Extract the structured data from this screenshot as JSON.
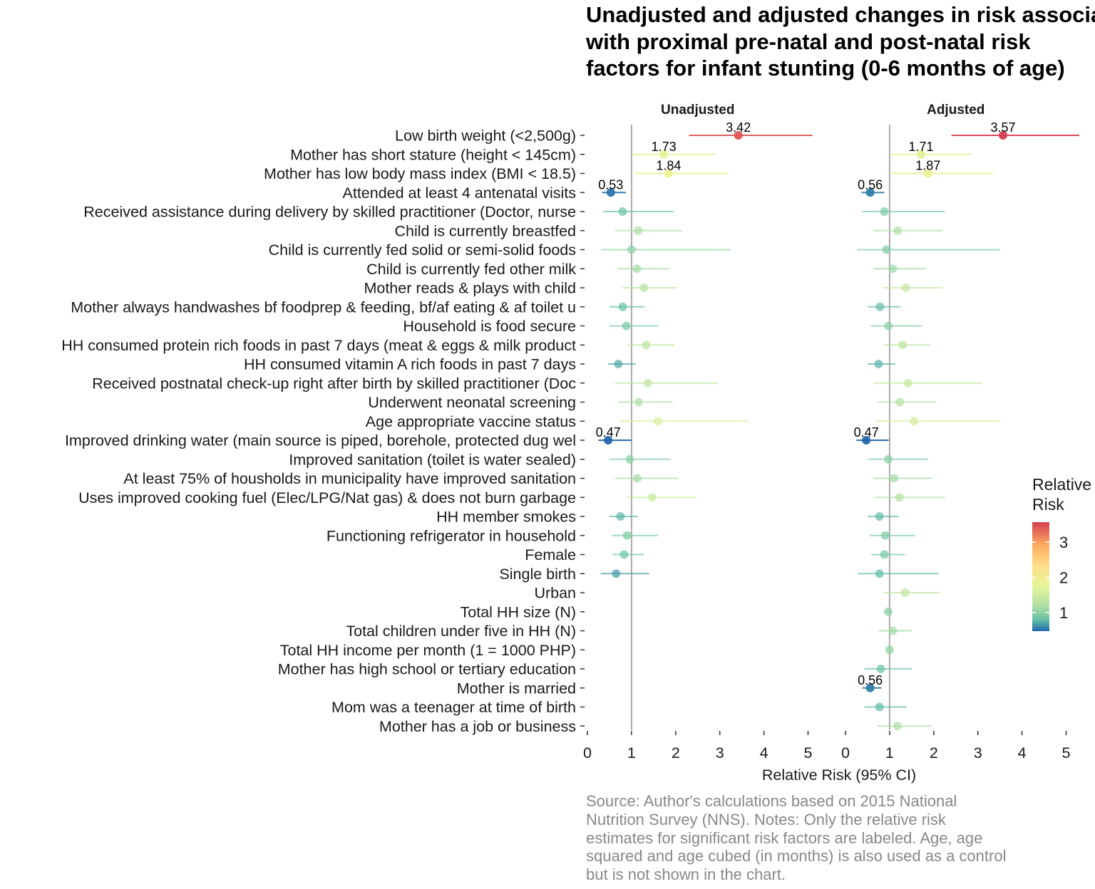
{
  "title_lines": [
    "Unadjusted and adjusted changes in risk associated",
    "with proximal pre-natal and post-natal risk",
    "factors for infant stunting (0-6 months of age)"
  ],
  "caption_lines": [
    "Source: Author's calculations based on 2015 National",
    "Nutrition Survey (NNS). Notes: Only the relative risk",
    "estimates for significant risk factors are labeled. Age, age",
    "squared and age cubed (in months) is also used as a control",
    "but is not shown in the chart."
  ],
  "colors": {
    "low": "#2166ac",
    "mid_low": "#66c2a5",
    "mid": "#abdda4",
    "mid_high": "#e6f598",
    "high_1": "#fee08b",
    "high_2": "#fdae61",
    "top": "#d53e4f",
    "reference_line": "#aaaaaa"
  },
  "chart_data": {
    "type": "forest",
    "xlabel": "Relative Risk (95% CI)",
    "xlim": [
      0,
      5
    ],
    "xticks": [
      "0",
      "1",
      "2",
      "3",
      "4",
      "5"
    ],
    "reference_value": 1,
    "legend": {
      "title_lines": [
        "Relative",
        "Risk"
      ],
      "ticks": [
        "1",
        "2",
        "3"
      ],
      "tick_values": [
        1,
        2,
        3
      ],
      "range": [
        0.47,
        3.57
      ],
      "position": "right"
    },
    "panels": [
      "Unadjusted",
      "Adjusted"
    ],
    "categories": [
      "Low birth weight (<2,500g)",
      "Mother has short stature (height < 145cm)",
      "Mother has low body mass index (BMI < 18.5)",
      "Attended at least 4 antenatal visits",
      "Received assistance during delivery by skilled practitioner (Doctor, nurse",
      "Child is currently breastfed",
      "Child is currently fed solid or semi-solid foods",
      "Child is currently fed other milk",
      "Mother reads & plays with child",
      "Mother always handwashes bf foodprep & feeding, bf/af eating & af toilet u",
      "Household is food secure",
      "HH consumed protein rich foods in past 7 days (meat & eggs & milk product",
      "HH consumed vitamin A rich foods in past 7 days",
      "Received postnatal check-up right after birth by skilled practitioner (Doc",
      "Underwent neonatal screening",
      "Age appropriate vaccine status",
      "Improved drinking water (main source is piped, borehole, protected dug wel",
      "Improved sanitation (toilet is water sealed)",
      "At least 75% of housholds in municipality have improved sanitation",
      "Uses improved cooking fuel (Elec/LPG/Nat gas) & does not burn garbage",
      "HH member smokes",
      "Functioning refrigerator in household",
      "Female",
      "Single birth",
      "Urban",
      "Total HH size (N)",
      "Total children under five in HH (N)",
      "Total HH income per month (1 = 1000 PHP)",
      "Mother has high school or tertiary education",
      "Mother is married",
      "Mom was a teenager at time of birth",
      "Mother has a job or business"
    ],
    "series": [
      {
        "name": "Unadjusted",
        "points": [
          {
            "rr": 3.42,
            "lo": 2.3,
            "hi": 5.1,
            "label": "3.42"
          },
          {
            "rr": 1.73,
            "lo": 1.03,
            "hi": 2.9,
            "label": "1.73"
          },
          {
            "rr": 1.84,
            "lo": 1.07,
            "hi": 3.2,
            "label": "1.84"
          },
          {
            "rr": 0.53,
            "lo": 0.33,
            "hi": 0.87,
            "label": "0.53"
          },
          {
            "rr": 0.8,
            "lo": 0.36,
            "hi": 1.95,
            "label": ""
          },
          {
            "rr": 1.15,
            "lo": 0.63,
            "hi": 2.15,
            "label": ""
          },
          {
            "rr": 1.0,
            "lo": 0.32,
            "hi": 3.25,
            "label": ""
          },
          {
            "rr": 1.12,
            "lo": 0.68,
            "hi": 1.85,
            "label": ""
          },
          {
            "rr": 1.28,
            "lo": 0.8,
            "hi": 2.02,
            "label": ""
          },
          {
            "rr": 0.8,
            "lo": 0.5,
            "hi": 1.3,
            "label": ""
          },
          {
            "rr": 0.88,
            "lo": 0.5,
            "hi": 1.6,
            "label": ""
          },
          {
            "rr": 1.33,
            "lo": 0.9,
            "hi": 1.98,
            "label": ""
          },
          {
            "rr": 0.7,
            "lo": 0.47,
            "hi": 1.1,
            "label": ""
          },
          {
            "rr": 1.37,
            "lo": 0.63,
            "hi": 2.95,
            "label": ""
          },
          {
            "rr": 1.16,
            "lo": 0.7,
            "hi": 1.93,
            "label": ""
          },
          {
            "rr": 1.6,
            "lo": 0.72,
            "hi": 3.65,
            "label": ""
          },
          {
            "rr": 0.47,
            "lo": 0.25,
            "hi": 1.0,
            "label": "0.47"
          },
          {
            "rr": 0.96,
            "lo": 0.5,
            "hi": 1.88,
            "label": ""
          },
          {
            "rr": 1.13,
            "lo": 0.63,
            "hi": 2.05,
            "label": ""
          },
          {
            "rr": 1.47,
            "lo": 0.88,
            "hi": 2.47,
            "label": ""
          },
          {
            "rr": 0.75,
            "lo": 0.5,
            "hi": 1.15,
            "label": ""
          },
          {
            "rr": 0.9,
            "lo": 0.55,
            "hi": 1.6,
            "label": ""
          },
          {
            "rr": 0.83,
            "lo": 0.57,
            "hi": 1.28,
            "label": ""
          },
          {
            "rr": 0.65,
            "lo": 0.3,
            "hi": 1.4,
            "label": ""
          },
          null,
          null,
          null,
          null,
          null,
          null,
          null,
          null
        ]
      },
      {
        "name": "Adjusted",
        "points": [
          {
            "rr": 3.57,
            "lo": 2.4,
            "hi": 5.3,
            "label": "3.57"
          },
          {
            "rr": 1.71,
            "lo": 1.02,
            "hi": 2.85,
            "label": "1.71"
          },
          {
            "rr": 1.87,
            "lo": 1.05,
            "hi": 3.35,
            "label": "1.87"
          },
          {
            "rr": 0.56,
            "lo": 0.36,
            "hi": 0.88,
            "label": "0.56"
          },
          {
            "rr": 0.88,
            "lo": 0.38,
            "hi": 2.25,
            "label": ""
          },
          {
            "rr": 1.18,
            "lo": 0.63,
            "hi": 2.2,
            "label": ""
          },
          {
            "rr": 0.93,
            "lo": 0.27,
            "hi": 3.5,
            "label": ""
          },
          {
            "rr": 1.07,
            "lo": 0.63,
            "hi": 1.83,
            "label": ""
          },
          {
            "rr": 1.37,
            "lo": 0.85,
            "hi": 2.2,
            "label": ""
          },
          {
            "rr": 0.78,
            "lo": 0.5,
            "hi": 1.25,
            "label": ""
          },
          {
            "rr": 0.97,
            "lo": 0.57,
            "hi": 1.73,
            "label": ""
          },
          {
            "rr": 1.3,
            "lo": 0.88,
            "hi": 1.93,
            "label": ""
          },
          {
            "rr": 0.75,
            "lo": 0.5,
            "hi": 1.13,
            "label": ""
          },
          {
            "rr": 1.42,
            "lo": 0.63,
            "hi": 3.1,
            "label": ""
          },
          {
            "rr": 1.23,
            "lo": 0.73,
            "hi": 2.05,
            "label": ""
          },
          {
            "rr": 1.55,
            "lo": 0.68,
            "hi": 3.5,
            "label": ""
          },
          {
            "rr": 0.47,
            "lo": 0.25,
            "hi": 0.98,
            "label": "0.47"
          },
          {
            "rr": 0.97,
            "lo": 0.52,
            "hi": 1.88,
            "label": ""
          },
          {
            "rr": 1.1,
            "lo": 0.63,
            "hi": 1.95,
            "label": ""
          },
          {
            "rr": 1.22,
            "lo": 0.67,
            "hi": 2.25,
            "label": ""
          },
          {
            "rr": 0.77,
            "lo": 0.5,
            "hi": 1.2,
            "label": ""
          },
          {
            "rr": 0.9,
            "lo": 0.55,
            "hi": 1.58,
            "label": ""
          },
          {
            "rr": 0.88,
            "lo": 0.58,
            "hi": 1.35,
            "label": ""
          },
          {
            "rr": 0.77,
            "lo": 0.28,
            "hi": 2.1,
            "label": ""
          },
          {
            "rr": 1.35,
            "lo": 0.85,
            "hi": 2.15,
            "label": ""
          },
          {
            "rr": 0.97,
            "lo": 0.92,
            "hi": 1.03,
            "label": ""
          },
          {
            "rr": 1.07,
            "lo": 0.75,
            "hi": 1.5,
            "label": ""
          },
          {
            "rr": 1.0,
            "lo": 0.99,
            "hi": 1.01,
            "label": ""
          },
          {
            "rr": 0.8,
            "lo": 0.43,
            "hi": 1.5,
            "label": ""
          },
          {
            "rr": 0.56,
            "lo": 0.38,
            "hi": 0.82,
            "label": "0.56"
          },
          {
            "rr": 0.77,
            "lo": 0.43,
            "hi": 1.38,
            "label": ""
          },
          {
            "rr": 1.18,
            "lo": 0.72,
            "hi": 1.95,
            "label": ""
          }
        ]
      }
    ]
  }
}
